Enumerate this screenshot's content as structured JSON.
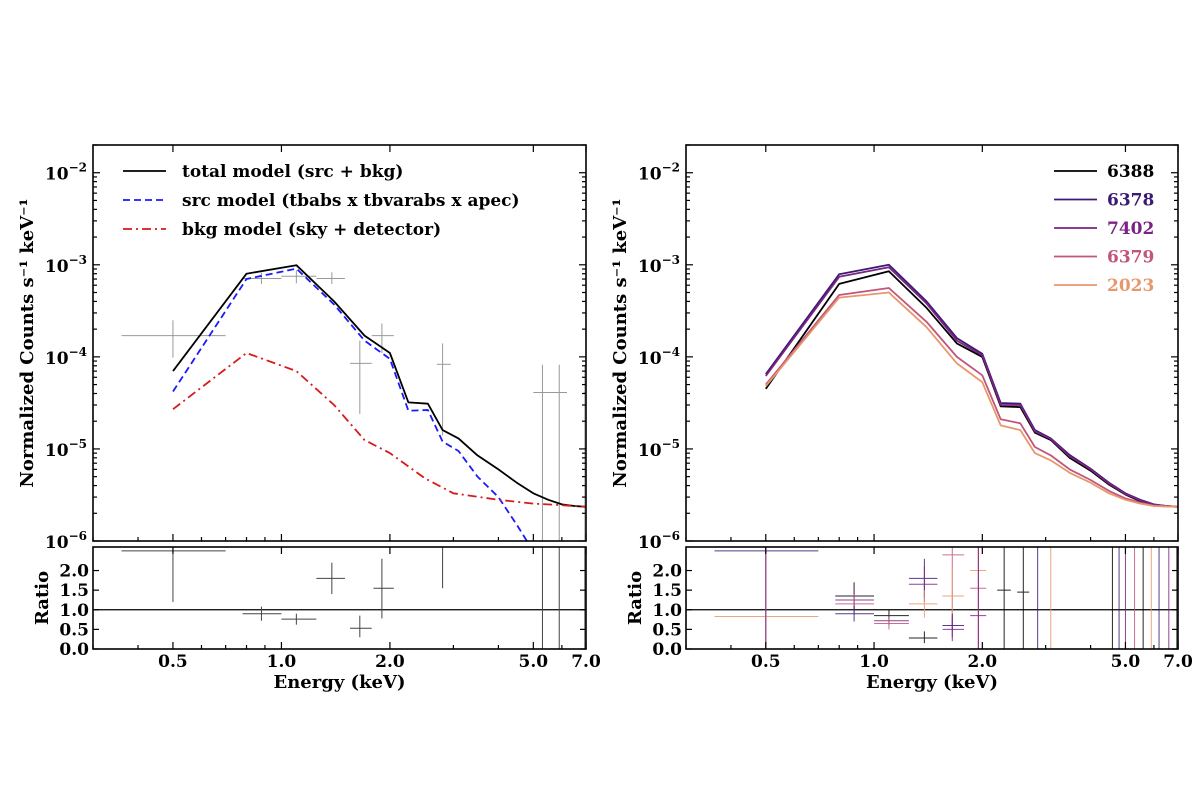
{
  "chart_data": [
    {
      "type": "line",
      "panel": "left",
      "xlabel": "Energy (keV)",
      "ylabel": "Normalized Counts s⁻¹ keV⁻¹",
      "ratio_ylabel": "Ratio",
      "xscale": "log",
      "xlim": [
        0.3,
        7.0
      ],
      "ylim": [
        1e-06,
        0.02
      ],
      "ratio_ylim": [
        0,
        2.6
      ],
      "x_ticks": [
        0.5,
        1.0,
        2.0,
        5.0,
        7.0
      ],
      "x_tick_labels": [
        "0.5",
        "1.0",
        "2.0",
        "5.0",
        "7.0"
      ],
      "y_ticks": [
        {
          "value": 0.01,
          "base": "10",
          "exp": "−2"
        },
        {
          "value": 0.001,
          "base": "10",
          "exp": "−3"
        },
        {
          "value": 0.0001,
          "base": "10",
          "exp": "−4"
        },
        {
          "value": 1e-05,
          "base": "10",
          "exp": "−5"
        },
        {
          "value": 1e-06,
          "base": "10",
          "exp": "−6"
        }
      ],
      "ratio_ticks": [
        0.0,
        0.5,
        1.0,
        1.5,
        2.0
      ],
      "ratio_tick_labels": [
        "0.0",
        "0.5",
        "1.0",
        "1.5",
        "2.0"
      ],
      "legend_position": "top-left",
      "series": [
        {
          "name": "total model (src + bkg)",
          "color": "#000000",
          "dash": "solid",
          "x": [
            0.5,
            0.8,
            1.1,
            1.4,
            1.7,
            2.0,
            2.25,
            2.55,
            2.8,
            3.1,
            3.5,
            4.0,
            4.5,
            5.0,
            5.5,
            6.0,
            6.5,
            7.0
          ],
          "y": [
            7e-05,
            0.0008,
            0.00099,
            0.0004,
            0.00017,
            0.00011,
            3.2e-05,
            3.1e-05,
            1.6e-05,
            1.3e-05,
            8.5e-06,
            6e-06,
            4.3e-06,
            3.3e-06,
            2.8e-06,
            2.5e-06,
            2.4e-06,
            2.35e-06
          ]
        },
        {
          "name": "src model (tbabs x tbvarabs x apec)",
          "color": "#1a1aff",
          "dash": "dashed",
          "x": [
            0.5,
            0.8,
            1.1,
            1.4,
            1.7,
            2.0,
            2.25,
            2.55,
            2.8,
            3.1,
            3.5,
            4.0,
            4.5,
            4.8
          ],
          "y": [
            4.2e-05,
            0.0007,
            0.00091,
            0.00037,
            0.00015,
            9.5e-05,
            2.6e-05,
            2.65e-05,
            1.2e-05,
            9.5e-06,
            5e-06,
            3e-06,
            1.5e-06,
            1e-06
          ]
        },
        {
          "name": "bkg model (sky + detector)",
          "color": "#d61a1a",
          "dash": "dashdot",
          "x": [
            0.5,
            0.8,
            1.1,
            1.4,
            1.7,
            2.0,
            2.5,
            3.0,
            4.0,
            5.0,
            6.0,
            7.0
          ],
          "y": [
            2.7e-05,
            0.00011,
            7e-05,
            3e-05,
            1.25e-05,
            9e-06,
            4.8e-06,
            3.3e-06,
            2.8e-06,
            2.55e-06,
            2.45e-06,
            2.35e-06
          ]
        }
      ],
      "data_points": [
        {
          "x": 0.5,
          "xlo": 0.36,
          "xhi": 0.7,
          "y": 0.00017,
          "ylo": 9.8e-05,
          "yhi": 0.00025
        },
        {
          "x": 0.88,
          "xlo": 0.78,
          "xhi": 1.0,
          "y": 0.00071,
          "ylo": 0.00062,
          "yhi": 0.00082
        },
        {
          "x": 1.1,
          "xlo": 1.0,
          "xhi": 1.25,
          "y": 0.00075,
          "ylo": 0.00063,
          "yhi": 0.00087
        },
        {
          "x": 1.38,
          "xlo": 1.25,
          "xhi": 1.5,
          "y": 0.00071,
          "ylo": 0.00062,
          "yhi": 0.00083
        },
        {
          "x": 1.65,
          "xlo": 1.55,
          "xhi": 1.78,
          "y": 8.5e-05,
          "ylo": 2.4e-05,
          "yhi": 0.00015
        },
        {
          "x": 1.9,
          "xlo": 1.78,
          "xhi": 2.05,
          "y": 0.00017,
          "ylo": 0.00011,
          "yhi": 0.00023
        },
        {
          "x": 2.8,
          "xlo": 2.7,
          "xhi": 2.95,
          "y": 8.3e-05,
          "ylo": 1.4e-05,
          "yhi": 0.00014
        },
        {
          "x": 5.3,
          "xlo": 5.0,
          "xhi": 5.6,
          "y": 4.1e-05,
          "ylo": 1e-06,
          "yhi": 8.2e-05
        },
        {
          "x": 5.9,
          "xlo": 5.6,
          "xhi": 6.2,
          "y": 4.1e-05,
          "ylo": 1e-06,
          "yhi": 8.2e-05
        },
        {
          "x": 6.95,
          "xlo": 6.9,
          "xhi": 7.0,
          "y": 4.1e-05,
          "ylo": 1e-06,
          "yhi": 8.2e-05
        }
      ],
      "ratio_points": [
        {
          "x": 0.5,
          "xlo": 0.36,
          "xhi": 0.7,
          "y": 2.5,
          "ylo": 1.2,
          "yhi": 2.6
        },
        {
          "x": 0.88,
          "xlo": 0.78,
          "xhi": 1.0,
          "y": 0.9,
          "ylo": 0.72,
          "yhi": 1.08
        },
        {
          "x": 1.1,
          "xlo": 1.0,
          "xhi": 1.25,
          "y": 0.76,
          "ylo": 0.62,
          "yhi": 0.9
        },
        {
          "x": 1.38,
          "xlo": 1.25,
          "xhi": 1.5,
          "y": 1.8,
          "ylo": 1.4,
          "yhi": 2.2
        },
        {
          "x": 1.65,
          "xlo": 1.55,
          "xhi": 1.78,
          "y": 0.53,
          "ylo": 0.3,
          "yhi": 0.85
        },
        {
          "x": 1.9,
          "xlo": 1.8,
          "xhi": 2.05,
          "y": 1.55,
          "ylo": 0.78,
          "yhi": 2.3
        },
        {
          "x": 2.8,
          "xlo": 2.8,
          "xhi": 2.8,
          "y": 2.4,
          "ylo": 1.55,
          "yhi": 2.6
        },
        {
          "x": 5.3,
          "xlo": 5.3,
          "xhi": 5.3,
          "y": 1.3,
          "ylo": 0.0,
          "yhi": 2.6
        },
        {
          "x": 5.9,
          "xlo": 5.9,
          "xhi": 5.9,
          "y": 1.3,
          "ylo": 0.0,
          "yhi": 2.6
        },
        {
          "x": 6.95,
          "xlo": 6.95,
          "xhi": 6.95,
          "y": 1.3,
          "ylo": 0.0,
          "yhi": 2.6
        }
      ]
    },
    {
      "type": "line",
      "panel": "right",
      "xlabel": "Energy (keV)",
      "ylabel": "Normalized Counts s⁻¹ keV⁻¹",
      "ratio_ylabel": "Ratio",
      "xscale": "log",
      "xlim": [
        0.3,
        7.0
      ],
      "ylim": [
        1e-06,
        0.02
      ],
      "ratio_ylim": [
        0,
        2.6
      ],
      "x_ticks": [
        0.5,
        1.0,
        2.0,
        5.0,
        7.0
      ],
      "x_tick_labels": [
        "0.5",
        "1.0",
        "2.0",
        "5.0",
        "7.0"
      ],
      "y_ticks": [
        {
          "value": 0.01,
          "base": "10",
          "exp": "−2"
        },
        {
          "value": 0.001,
          "base": "10",
          "exp": "−3"
        },
        {
          "value": 0.0001,
          "base": "10",
          "exp": "−4"
        },
        {
          "value": 1e-05,
          "base": "10",
          "exp": "−5"
        },
        {
          "value": 1e-06,
          "base": "10",
          "exp": "−6"
        }
      ],
      "ratio_ticks": [
        0.0,
        0.5,
        1.0,
        1.5,
        2.0
      ],
      "ratio_tick_labels": [
        "0.0",
        "0.5",
        "1.0",
        "1.5",
        "2.0"
      ],
      "legend_position": "top-right",
      "x_common": [
        0.5,
        0.8,
        1.1,
        1.4,
        1.7,
        2.0,
        2.25,
        2.55,
        2.8,
        3.1,
        3.5,
        4.0,
        4.5,
        5.0,
        5.5,
        6.0,
        6.5,
        7.0
      ],
      "series": [
        {
          "name": "6388",
          "color": "#000000",
          "y": [
            4.5e-05,
            0.00062,
            0.00085,
            0.00034,
            0.00014,
            0.0001,
            2.9e-05,
            2.85e-05,
            1.5e-05,
            1.25e-05,
            8e-06,
            5.8e-06,
            4.1e-06,
            3.2e-06,
            2.7e-06,
            2.45e-06,
            2.4e-06,
            2.35e-06
          ]
        },
        {
          "name": "6378",
          "color": "#3b1a75",
          "y": [
            6.5e-05,
            0.00079,
            0.001,
            0.0004,
            0.00016,
            0.000108,
            3.15e-05,
            3.1e-05,
            1.6e-05,
            1.3e-05,
            8.6e-06,
            6.1e-06,
            4.3e-06,
            3.3e-06,
            2.8e-06,
            2.5e-06,
            2.4e-06,
            2.35e-06
          ]
        },
        {
          "name": "7402",
          "color": "#7b2382",
          "y": [
            6.2e-05,
            0.00074,
            0.00094,
            0.00038,
            0.00015,
            0.000104,
            3e-05,
            3e-05,
            1.55e-05,
            1.28e-05,
            8.3e-06,
            6e-06,
            4.2e-06,
            3.25e-06,
            2.75e-06,
            2.48e-06,
            2.4e-06,
            2.35e-06
          ]
        },
        {
          "name": "6379",
          "color": "#c2557a",
          "y": [
            5e-05,
            0.00047,
            0.00056,
            0.00024,
            0.0001,
            6.3e-05,
            2.1e-05,
            1.9e-05,
            1.05e-05,
            8.5e-06,
            6e-06,
            4.6e-06,
            3.5e-06,
            2.9e-06,
            2.6e-06,
            2.42e-06,
            2.38e-06,
            2.35e-06
          ]
        },
        {
          "name": "2023",
          "color": "#e8976d",
          "y": [
            4.8e-05,
            0.00044,
            0.0005,
            0.00021,
            8.5e-05,
            5.3e-05,
            1.8e-05,
            1.6e-05,
            9e-06,
            7.5e-06,
            5.5e-06,
            4.3e-06,
            3.3e-06,
            2.8e-06,
            2.55e-06,
            2.4e-06,
            2.37e-06,
            2.35e-06
          ]
        }
      ],
      "ratio_points": [
        {
          "x": 0.5,
          "xlo": 0.36,
          "xhi": 0.7,
          "y": 2.5,
          "ylo": 0.0,
          "yhi": 2.6,
          "series": "6378"
        },
        {
          "x": 0.5,
          "xlo": 0.36,
          "xhi": 0.7,
          "y": 0.83,
          "ylo": 0.0,
          "yhi": 2.6,
          "series": "2023"
        },
        {
          "x": 0.5,
          "xlo": 0.5,
          "xhi": 0.5,
          "y": 1.3,
          "ylo": 0.0,
          "yhi": 2.6,
          "series": "7402"
        },
        {
          "x": 0.88,
          "xlo": 0.78,
          "xhi": 1.0,
          "y": 1.35,
          "ylo": 1.0,
          "yhi": 1.7,
          "series": "6388"
        },
        {
          "x": 0.88,
          "xlo": 0.78,
          "xhi": 1.0,
          "y": 1.25,
          "ylo": 0.95,
          "yhi": 1.55,
          "series": "7402"
        },
        {
          "x": 0.88,
          "xlo": 0.78,
          "xhi": 1.0,
          "y": 1.15,
          "ylo": 0.9,
          "yhi": 1.4,
          "series": "6379"
        },
        {
          "x": 0.88,
          "xlo": 0.78,
          "xhi": 1.0,
          "y": 0.9,
          "ylo": 0.7,
          "yhi": 1.1,
          "series": "6378"
        },
        {
          "x": 1.1,
          "xlo": 1.0,
          "xhi": 1.25,
          "y": 0.85,
          "ylo": 0.7,
          "yhi": 1.0,
          "series": "6388"
        },
        {
          "x": 1.1,
          "xlo": 1.0,
          "xhi": 1.25,
          "y": 0.72,
          "ylo": 0.6,
          "yhi": 0.85,
          "series": "7402"
        },
        {
          "x": 1.1,
          "xlo": 1.0,
          "xhi": 1.25,
          "y": 0.65,
          "ylo": 0.5,
          "yhi": 0.8,
          "series": "6379"
        },
        {
          "x": 1.38,
          "xlo": 1.25,
          "xhi": 1.5,
          "y": 1.8,
          "ylo": 1.3,
          "yhi": 2.3,
          "series": "6378"
        },
        {
          "x": 1.38,
          "xlo": 1.25,
          "xhi": 1.5,
          "y": 1.65,
          "ylo": 1.2,
          "yhi": 2.1,
          "series": "7402"
        },
        {
          "x": 1.38,
          "xlo": 1.25,
          "xhi": 1.5,
          "y": 1.15,
          "ylo": 0.8,
          "yhi": 1.5,
          "series": "2023"
        },
        {
          "x": 1.38,
          "xlo": 1.25,
          "xhi": 1.5,
          "y": 0.28,
          "ylo": 0.15,
          "yhi": 0.45,
          "series": "6388"
        },
        {
          "x": 1.65,
          "xlo": 1.55,
          "xhi": 1.78,
          "y": 2.4,
          "ylo": 0.5,
          "yhi": 2.6,
          "series": "6379"
        },
        {
          "x": 1.65,
          "xlo": 1.55,
          "xhi": 1.78,
          "y": 1.35,
          "ylo": 0.6,
          "yhi": 2.1,
          "series": "2023"
        },
        {
          "x": 1.65,
          "xlo": 1.55,
          "xhi": 1.78,
          "y": 0.6,
          "ylo": 0.3,
          "yhi": 0.9,
          "series": "6378"
        },
        {
          "x": 1.65,
          "xlo": 1.55,
          "xhi": 1.78,
          "y": 0.5,
          "ylo": 0.2,
          "yhi": 0.8,
          "series": "7402"
        },
        {
          "x": 1.95,
          "xlo": 1.85,
          "xhi": 2.05,
          "y": 2.0,
          "ylo": 0.0,
          "yhi": 2.6,
          "series": "2023"
        },
        {
          "x": 1.95,
          "xlo": 1.85,
          "xhi": 2.05,
          "y": 1.55,
          "ylo": 0.0,
          "yhi": 2.6,
          "series": "6379"
        },
        {
          "x": 1.95,
          "xlo": 1.85,
          "xhi": 2.05,
          "y": 0.85,
          "ylo": 0.0,
          "yhi": 2.6,
          "series": "7402"
        },
        {
          "x": 2.3,
          "xlo": 2.2,
          "xhi": 2.4,
          "y": 1.5,
          "ylo": 0.0,
          "yhi": 2.6,
          "series": "6388"
        },
        {
          "x": 2.6,
          "xlo": 2.5,
          "xhi": 2.7,
          "y": 1.45,
          "ylo": 0.0,
          "yhi": 2.6,
          "series": "6388"
        },
        {
          "x": 2.85,
          "xlo": 2.85,
          "xhi": 2.85,
          "y": 1.3,
          "ylo": 0.0,
          "yhi": 2.6,
          "series": "6378"
        },
        {
          "x": 3.1,
          "xlo": 3.1,
          "xhi": 3.1,
          "y": 1.3,
          "ylo": 0.0,
          "yhi": 2.6,
          "series": "2023"
        },
        {
          "x": 4.6,
          "xlo": 4.6,
          "xhi": 4.6,
          "y": 1.3,
          "ylo": 0.0,
          "yhi": 2.6,
          "series": "6388"
        },
        {
          "x": 4.8,
          "xlo": 4.8,
          "xhi": 4.8,
          "y": 1.3,
          "ylo": 0.0,
          "yhi": 2.6,
          "series": "6378"
        },
        {
          "x": 5.0,
          "xlo": 5.0,
          "xhi": 5.0,
          "y": 1.3,
          "ylo": 0.0,
          "yhi": 2.6,
          "series": "7402"
        },
        {
          "x": 5.3,
          "xlo": 5.3,
          "xhi": 5.3,
          "y": 1.3,
          "ylo": 0.0,
          "yhi": 2.6,
          "series": "6379"
        },
        {
          "x": 5.6,
          "xlo": 5.6,
          "xhi": 5.6,
          "y": 1.3,
          "ylo": 0.0,
          "yhi": 2.6,
          "series": "6388"
        },
        {
          "x": 5.9,
          "xlo": 5.9,
          "xhi": 5.9,
          "y": 1.3,
          "ylo": 0.0,
          "yhi": 2.6,
          "series": "2023"
        },
        {
          "x": 6.2,
          "xlo": 6.2,
          "xhi": 6.2,
          "y": 1.3,
          "ylo": 0.0,
          "yhi": 2.6,
          "series": "6378"
        },
        {
          "x": 6.6,
          "xlo": 6.6,
          "xhi": 6.6,
          "y": 1.3,
          "ylo": 0.0,
          "yhi": 2.6,
          "series": "7402"
        },
        {
          "x": 6.95,
          "xlo": 6.95,
          "xhi": 6.95,
          "y": 1.3,
          "ylo": 0.0,
          "yhi": 2.6,
          "series": "6388"
        }
      ]
    }
  ]
}
